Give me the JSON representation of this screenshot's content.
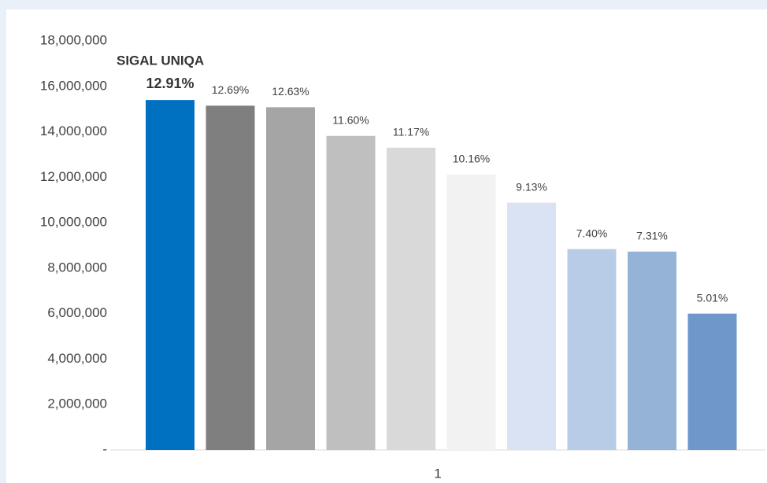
{
  "chart_data": {
    "type": "bar",
    "categories": [
      "1"
    ],
    "series": [
      {
        "name": "SIGAL UNIQA",
        "color": "#0070c0",
        "values": [
          15400000
        ],
        "label": "12.91%"
      },
      {
        "color": "#7f7f7f",
        "values": [
          15150000
        ],
        "label": "12.69%"
      },
      {
        "color": "#a5a5a5",
        "values": [
          15080000
        ],
        "label": "12.63%"
      },
      {
        "color": "#bfbfbf",
        "values": [
          13820000
        ],
        "label": "11.60%"
      },
      {
        "color": "#d9d9d9",
        "values": [
          13300000
        ],
        "label": "11.17%"
      },
      {
        "color": "#f2f2f2",
        "values": [
          12120000
        ],
        "label": "10.16%"
      },
      {
        "color": "#dae3f3",
        "values": [
          10880000
        ],
        "label": "9.13%"
      },
      {
        "color": "#b8cce8",
        "values": [
          8840000
        ],
        "label": "7.40%"
      },
      {
        "color": "#95b3d7",
        "values": [
          8730000
        ],
        "label": "7.31%"
      },
      {
        "color": "#6f97c9",
        "values": [
          6000000
        ],
        "label": "5.01%"
      }
    ],
    "ylim": [
      0,
      18000000
    ],
    "yticks": [
      {
        "value": 0,
        "label": "-"
      },
      {
        "value": 2000000,
        "label": "2,000,000"
      },
      {
        "value": 4000000,
        "label": "4,000,000"
      },
      {
        "value": 6000000,
        "label": "6,000,000"
      },
      {
        "value": 8000000,
        "label": "8,000,000"
      },
      {
        "value": 10000000,
        "label": "10,000,000"
      },
      {
        "value": 12000000,
        "label": "12,000,000"
      },
      {
        "value": 14000000,
        "label": "14,000,000"
      },
      {
        "value": 16000000,
        "label": "16,000,000"
      },
      {
        "value": 18000000,
        "label": "18,000,000"
      }
    ],
    "grid": false
  }
}
